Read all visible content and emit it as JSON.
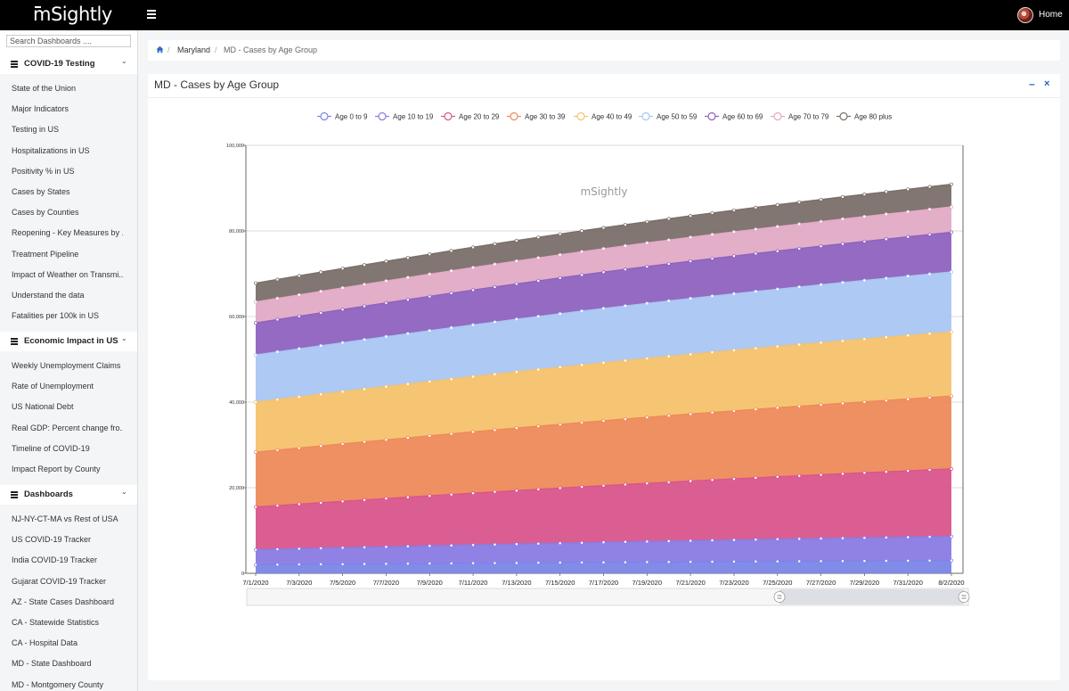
{
  "app": {
    "logo": "mSightly",
    "home_label": "Home"
  },
  "sidebar": {
    "search_placeholder": "Search Dashboards ....",
    "sections": [
      {
        "title": "COVID-19 Testing",
        "items": [
          "State of the Union",
          "Major Indicators",
          "Testing in US",
          "Hospitalizations in US",
          "Positivity % in US",
          "Cases by States",
          "Cases by Counties",
          "Reopening - Key Measures by ..",
          "Treatment Pipeline",
          "Impact of Weather on Transmi..",
          "Understand the data",
          "Fatalities per 100k in US"
        ]
      },
      {
        "title": "Economic Impact in US",
        "items": [
          "Weekly Unemployment Claims",
          "Rate of Unemployment",
          "US National Debt",
          "Real GDP: Percent change fro..",
          "Timeline of COVID-19",
          "Impact Report by County"
        ]
      },
      {
        "title": "Dashboards",
        "items": [
          "NJ-NY-CT-MA vs Rest of USA",
          "US COVID-19 Tracker",
          "India COVID-19 Tracker",
          "Gujarat COVID-19 Tracker",
          "AZ - State Cases Dashboard",
          "CA - Statewide Statistics",
          "CA - Hospital Data",
          "MD - State Dashboard",
          "MD - Montgomery County"
        ]
      }
    ]
  },
  "breadcrumb": {
    "parent": "Maryland",
    "current": "MD - Cases by Age Group"
  },
  "panel": {
    "title": "MD - Cases by Age Group"
  },
  "chart_data": {
    "type": "area",
    "stacked": true,
    "title": "MD - Cases by Age Group",
    "watermark": "mSightly",
    "x_tick_labels": [
      "7/1/2020",
      "7/3/2020",
      "7/5/2020",
      "7/7/2020",
      "7/9/2020",
      "7/11/2020",
      "7/13/2020",
      "7/15/2020",
      "7/17/2020",
      "7/19/2020",
      "7/21/2020",
      "7/23/2020",
      "7/25/2020",
      "7/27/2020",
      "7/29/2020",
      "7/31/2020",
      "8/2/2020"
    ],
    "num_points": 33,
    "ylim": [
      0,
      100000
    ],
    "y_tick_labels": [
      "0",
      "20,000",
      "40,000",
      "60,000",
      "80,000",
      "100,000"
    ],
    "legend_position": "top-center",
    "series": [
      {
        "name": "Age 0 to 9",
        "color": "#7b85e6",
        "start": 2000,
        "end": 3000
      },
      {
        "name": "Age 10 to 19",
        "color": "#8a7be4",
        "start": 3500,
        "end": 5600
      },
      {
        "name": "Age 20 to 29",
        "color": "#d9558c",
        "start": 10000,
        "end": 15800
      },
      {
        "name": "Age 30 to 39",
        "color": "#ee8a5a",
        "start": 12800,
        "end": 17000
      },
      {
        "name": "Age 40 to 49",
        "color": "#f5c26b",
        "start": 11700,
        "end": 15000
      },
      {
        "name": "Age 50 to 59",
        "color": "#a9c6f3",
        "start": 11000,
        "end": 14000
      },
      {
        "name": "Age 60 to 69",
        "color": "#8e62bf",
        "start": 7500,
        "end": 9300
      },
      {
        "name": "Age 70 to 79",
        "color": "#e2aac5",
        "start": 4900,
        "end": 5900
      },
      {
        "name": "Age 80 plus",
        "color": "#7a6f69",
        "start": 4400,
        "end": 5300
      }
    ]
  }
}
